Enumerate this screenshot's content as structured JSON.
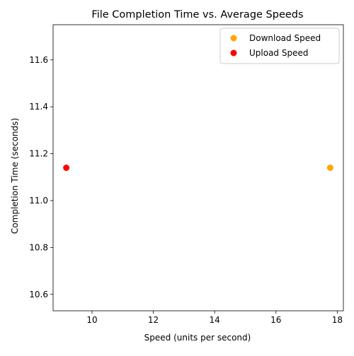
{
  "chart_data": {
    "type": "scatter",
    "title": "File Completion Time vs. Average Speeds",
    "xlabel": "Speed (units per second)",
    "ylabel": "Completion Time (seconds)",
    "xlim": [
      8.73,
      18.2
    ],
    "ylim": [
      10.53,
      11.75
    ],
    "x_ticks": [
      10,
      12,
      14,
      16,
      18
    ],
    "y_ticks": [
      10.6,
      10.8,
      11.0,
      11.2,
      11.4,
      11.6,
      11.8
    ],
    "x_tick_labels": [
      "10",
      "12",
      "14",
      "16",
      "18"
    ],
    "y_tick_labels": [
      "10.6",
      "10.8",
      "11.0",
      "11.2",
      "11.4",
      "11.6",
      "11.8"
    ],
    "grid": false,
    "legend_position": "top-right",
    "series": [
      {
        "name": "Download Speed",
        "color": "#ffa500",
        "points": [
          {
            "x": 17.77,
            "y": 11.14
          }
        ]
      },
      {
        "name": "Upload Speed",
        "color": "#ff0000",
        "points": [
          {
            "x": 9.16,
            "y": 11.14
          }
        ]
      }
    ]
  }
}
